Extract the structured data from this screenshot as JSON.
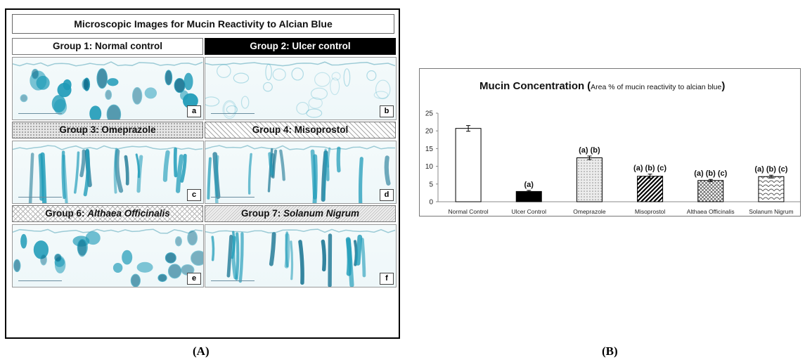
{
  "panelA": {
    "title": "Microscopic Images for Mucin Reactivity to Alcian Blue",
    "caption": "(A)",
    "groups": [
      {
        "label": "Group 1: Normal control",
        "label_prefix": "Group 1: ",
        "label_name": "Normal control",
        "name_italic": false,
        "tag": "a",
        "style": "plain"
      },
      {
        "label": "Group 2: Ulcer control",
        "label_prefix": "Group 2: ",
        "label_name": "Ulcer control",
        "name_italic": false,
        "tag": "b",
        "style": "black"
      },
      {
        "label": "Group 3: Omeprazole",
        "label_prefix": "Group 3: ",
        "label_name": "Omeprazole",
        "name_italic": false,
        "tag": "c",
        "style": "dots"
      },
      {
        "label": "Group 4: Misoprostol",
        "label_prefix": "Group 4: ",
        "label_name": "Misoprostol",
        "name_italic": false,
        "tag": "d",
        "style": "diag"
      },
      {
        "label": "Group 6: Althaea Officinalis",
        "label_prefix": "Group 6: ",
        "label_name": "Althaea Officinalis",
        "name_italic": true,
        "tag": "e",
        "style": "cross"
      },
      {
        "label": "Group 7: Solanum Nigrum",
        "label_prefix": "Group 7: ",
        "label_name": "Solanum Nigrum",
        "name_italic": true,
        "tag": "f",
        "style": "hatch"
      }
    ],
    "colors": {
      "stain": "#1e9bb8",
      "stain_dark": "#0f6f8e",
      "tissue": "#eef7f9"
    }
  },
  "panelB": {
    "caption": "(B)"
  },
  "chart_data": {
    "type": "bar",
    "title": "Mucin Concentration",
    "subtitle": "(Area % of mucin reactivity to alcian blue)",
    "subtitle_open": "(",
    "subtitle_text": "Area % of mucin reactivity to alcian blue",
    "subtitle_close": ")",
    "categories": [
      "Normal Control",
      "Ulcer Control",
      "Omeprazole",
      "Misoprostol",
      "Althaea Officinalis",
      "Solanum Nigrum"
    ],
    "values": [
      20.7,
      2.9,
      12.4,
      7.2,
      6.0,
      7.1
    ],
    "errors": [
      0.8,
      0.3,
      0.5,
      0.6,
      0.3,
      0.4
    ],
    "annotations": [
      "",
      "(a)",
      "(a) (b)",
      "(a) (b) (c)",
      "(a) (b) (c)",
      "(a) (b) (c)"
    ],
    "fills": [
      "white",
      "black",
      "dots",
      "diagonal",
      "crosshatch",
      "scale"
    ],
    "ylim": [
      0,
      25
    ],
    "yticks": [
      0,
      5,
      10,
      15,
      20,
      25
    ],
    "xlabel": "",
    "ylabel": "",
    "grid": false,
    "legend": "none"
  }
}
